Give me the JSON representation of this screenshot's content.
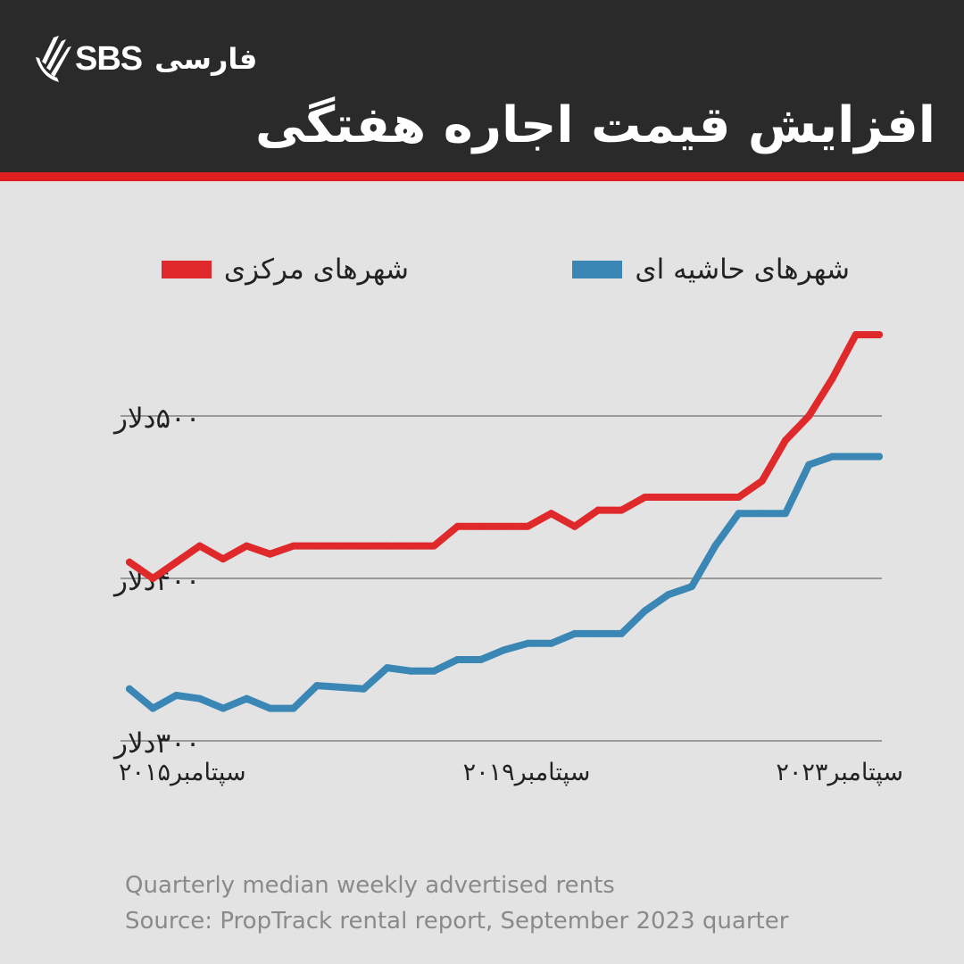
{
  "brand": {
    "name": "SBS",
    "language_label": "فارسی",
    "icon": "sbs-sunburst-logo"
  },
  "title": "افزایش قیمت اجاره هفتگی",
  "colors": {
    "header_bg": "#2a2a2a",
    "accent_red": "#e02020",
    "red_series": "#e0292b",
    "blue_series": "#3a87b5",
    "background": "#e3e3e3",
    "grid": "#9a9a9a"
  },
  "footer": {
    "line1": "Quarterly median weekly advertised rents",
    "line2": "Source: PropTrack rental report, September 2023 quarter"
  },
  "chart_data": {
    "type": "line",
    "title": "افزایش قیمت اجاره هفتگی",
    "ylim": [
      300,
      500
    ],
    "grid": true,
    "legend_placement": "top",
    "y_ticks": [
      {
        "value": 300,
        "label": "۳۰۰دلار"
      },
      {
        "value": 400,
        "label": "۴۰۰دلار"
      },
      {
        "value": 500,
        "label": "۵۰۰دلار"
      }
    ],
    "x_ticks": [
      {
        "x": "2015-Q3",
        "label": "سپتامبر۲۰۱۵"
      },
      {
        "x": "2019-Q3",
        "label": "سپتامبر۲۰۱۹"
      },
      {
        "x": "2023-Q3",
        "label": "سپتامبر۲۰۲۳"
      }
    ],
    "x": [
      "2015-Q3",
      "2015-Q4",
      "2016-Q1",
      "2016-Q2",
      "2016-Q3",
      "2016-Q4",
      "2017-Q1",
      "2017-Q2",
      "2017-Q3",
      "2017-Q4",
      "2018-Q1",
      "2018-Q2",
      "2018-Q3",
      "2018-Q4",
      "2019-Q1",
      "2019-Q2",
      "2019-Q3",
      "2019-Q4",
      "2020-Q1",
      "2020-Q2",
      "2020-Q3",
      "2020-Q4",
      "2021-Q1",
      "2021-Q2",
      "2021-Q3",
      "2021-Q4",
      "2022-Q1",
      "2022-Q2",
      "2022-Q3",
      "2022-Q4",
      "2023-Q1",
      "2023-Q2",
      "2023-Q3"
    ],
    "series": [
      {
        "name": "شهرهای مرکزی",
        "color": "#e0292b",
        "values": [
          410,
          400,
          410,
          420,
          412,
          420,
          415,
          420,
          420,
          420,
          420,
          420,
          420,
          420,
          432,
          432,
          432,
          432,
          440,
          432,
          442,
          442,
          450,
          450,
          450,
          450,
          450,
          460,
          485,
          500,
          523,
          550,
          550
        ]
      },
      {
        "name": "شهرهای حاشیه ای",
        "color": "#3a87b5",
        "values": [
          332,
          320,
          328,
          326,
          320,
          326,
          320,
          320,
          334,
          333,
          332,
          345,
          343,
          343,
          350,
          350,
          356,
          360,
          360,
          366,
          366,
          366,
          380,
          390,
          395,
          420,
          440,
          440,
          440,
          470,
          475,
          475,
          475
        ]
      }
    ]
  }
}
